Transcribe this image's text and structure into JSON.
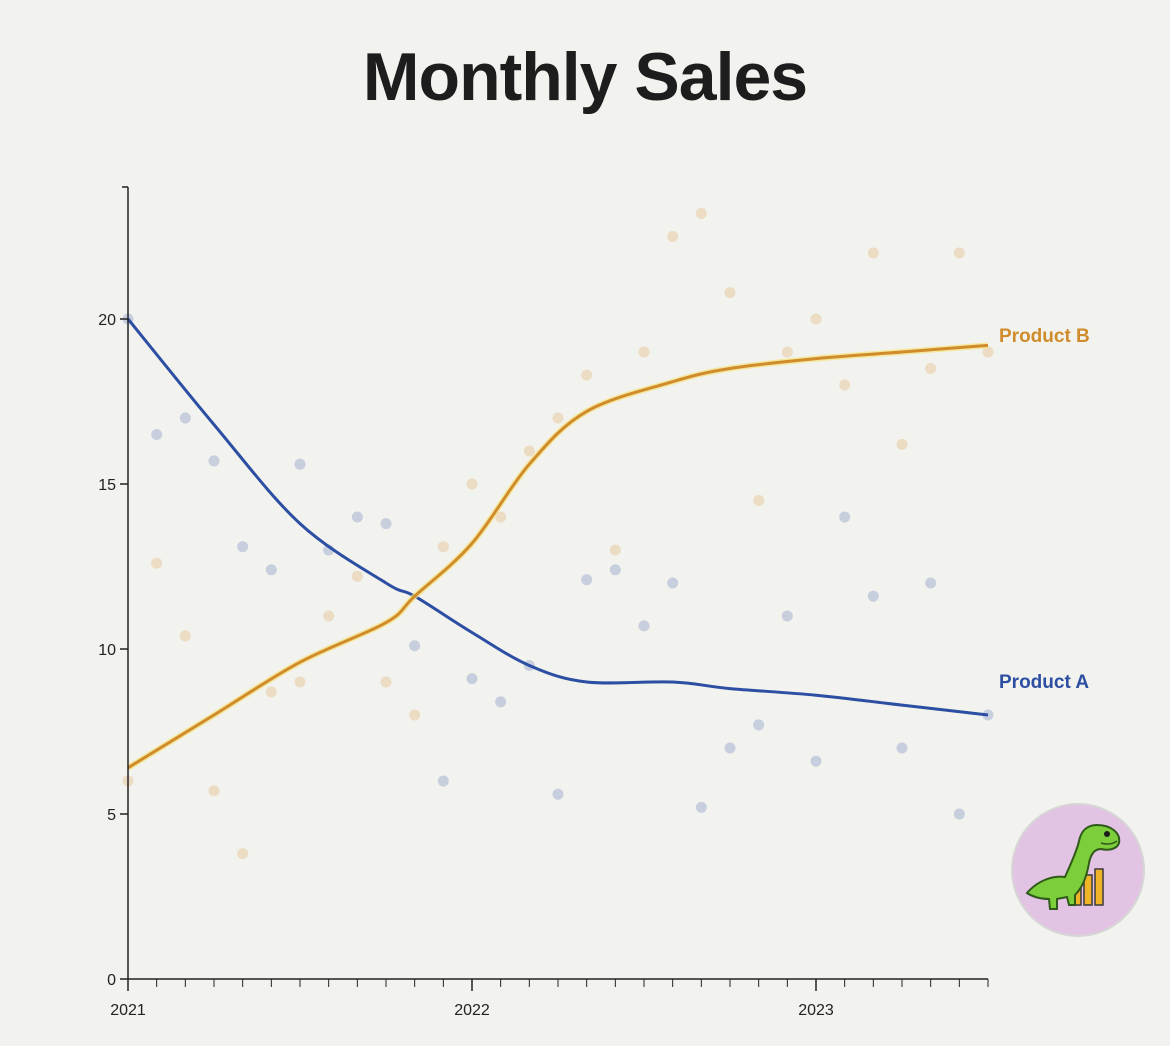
{
  "chart_data": {
    "type": "line",
    "title": "Monthly Sales",
    "x_ticks": [
      "2021",
      "2022",
      "2023"
    ],
    "y_ticks": [
      0,
      5,
      10,
      15,
      20
    ],
    "xlim": [
      "2021-01",
      "2023-07"
    ],
    "ylim": [
      0,
      24
    ],
    "grid": false,
    "legend": "inline labels at line ends",
    "colors": {
      "Product A": "#2c4ea3",
      "Product B": "#d08c2c"
    },
    "series": [
      {
        "name": "Product A",
        "line": {
          "x": [
            "2021-01",
            "2021-04",
            "2021-07",
            "2021-10",
            "2021-11",
            "2022-01",
            "2022-03",
            "2022-05",
            "2022-08",
            "2022-10",
            "2023-01",
            "2023-04",
            "2023-07"
          ],
          "y": [
            20,
            16.8,
            13.8,
            12.0,
            11.6,
            10.5,
            9.5,
            9.0,
            9.0,
            8.8,
            8.6,
            8.3,
            8.0
          ]
        },
        "points": {
          "x": [
            "2021-01",
            "2021-02",
            "2021-03",
            "2021-04",
            "2021-05",
            "2021-06",
            "2021-07",
            "2021-08",
            "2021-09",
            "2021-10",
            "2021-11",
            "2021-12",
            "2022-01",
            "2022-02",
            "2022-03",
            "2022-04",
            "2022-05",
            "2022-06",
            "2022-07",
            "2022-08",
            "2022-09",
            "2022-10",
            "2022-11",
            "2022-12",
            "2023-01",
            "2023-02",
            "2023-03",
            "2023-04",
            "2023-05",
            "2023-06",
            "2023-07"
          ],
          "y": [
            20.0,
            16.5,
            17.0,
            15.7,
            13.1,
            12.4,
            15.6,
            13.0,
            14.0,
            13.8,
            10.1,
            6.0,
            9.1,
            8.4,
            9.5,
            5.6,
            12.1,
            12.4,
            10.7,
            12.0,
            5.2,
            7.0,
            7.7,
            11.0,
            6.6,
            14.0,
            11.6,
            7.0,
            12.0,
            5.0,
            8.0
          ]
        }
      },
      {
        "name": "Product B",
        "line": {
          "x": [
            "2021-01",
            "2021-04",
            "2021-07",
            "2021-10",
            "2021-11",
            "2022-01",
            "2022-03",
            "2022-05",
            "2022-08",
            "2022-10",
            "2023-01",
            "2023-04",
            "2023-07"
          ],
          "y": [
            6.4,
            8.0,
            9.6,
            10.8,
            11.6,
            13.2,
            15.6,
            17.2,
            18.1,
            18.5,
            18.8,
            19.0,
            19.2
          ]
        },
        "points": {
          "x": [
            "2021-01",
            "2021-02",
            "2021-03",
            "2021-04",
            "2021-05",
            "2021-06",
            "2021-07",
            "2021-08",
            "2021-09",
            "2021-10",
            "2021-11",
            "2021-12",
            "2022-01",
            "2022-02",
            "2022-03",
            "2022-04",
            "2022-05",
            "2022-06",
            "2022-07",
            "2022-08",
            "2022-09",
            "2022-10",
            "2022-11",
            "2022-12",
            "2023-01",
            "2023-02",
            "2023-03",
            "2023-04",
            "2023-05",
            "2023-06",
            "2023-07"
          ],
          "y": [
            6.0,
            12.6,
            10.4,
            5.7,
            3.8,
            8.7,
            9.0,
            11.0,
            12.2,
            9.0,
            8.0,
            13.1,
            15.0,
            14.0,
            16.0,
            17.0,
            18.3,
            13.0,
            19.0,
            22.5,
            23.2,
            20.8,
            14.5,
            19.0,
            20.0,
            18.0,
            22.0,
            16.2,
            18.5,
            22.0,
            19.0
          ]
        }
      }
    ]
  },
  "badge": {
    "icon": "dinosaur-chart-icon",
    "colors": {
      "circle": "#e3c3e4",
      "dino": "#7ccf3a",
      "bars": "#f0b429"
    }
  }
}
